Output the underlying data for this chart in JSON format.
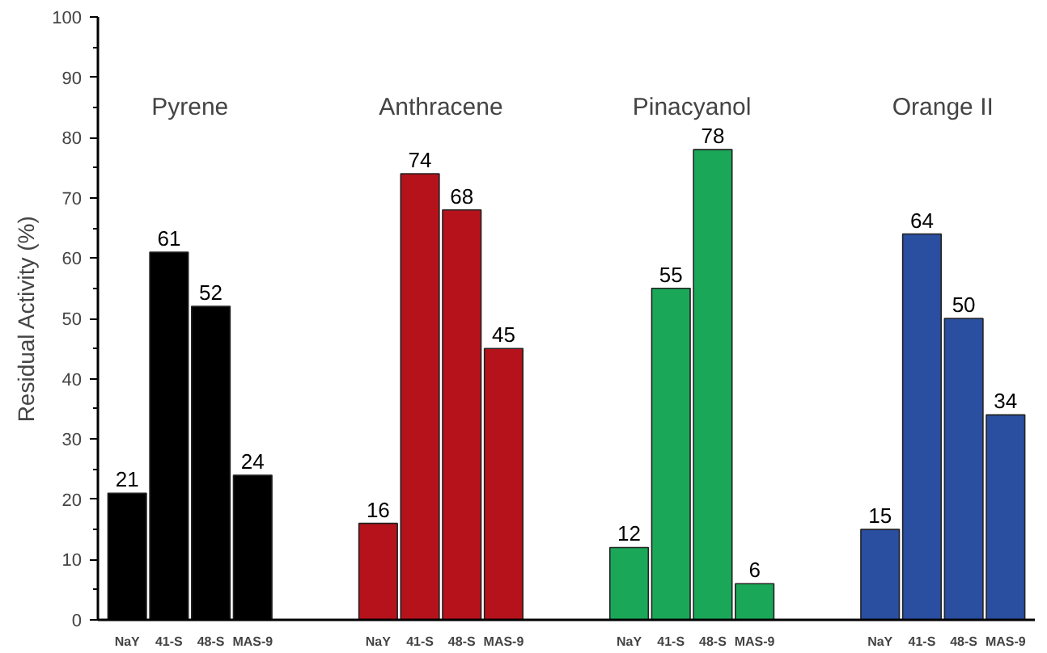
{
  "chart_data": {
    "type": "bar",
    "ylabel": "Residual Activity (%)",
    "categories": [
      "NaY",
      "41-S",
      "48-S",
      "MAS-9",
      null,
      null,
      "NaY",
      "41-S",
      "48-S",
      "MAS-9",
      null,
      null,
      "NaY",
      "41-S",
      "48-S",
      "MAS-9",
      null,
      null,
      "NaY",
      "41-S",
      "48-S",
      "MAS-9"
    ],
    "values": [
      21,
      61,
      52,
      24,
      null,
      null,
      16,
      74,
      68,
      45,
      null,
      null,
      12,
      55,
      78,
      6,
      null,
      null,
      15,
      64,
      50,
      34
    ],
    "colors": [
      "#000000",
      "#000000",
      "#000000",
      "#000000",
      null,
      null,
      "#b5121b",
      "#b5121b",
      "#b5121b",
      "#b5121b",
      null,
      null,
      "#1aa858",
      "#1aa858",
      "#1aa858",
      "#1aa858",
      null,
      null,
      "#2a4ea0",
      "#2a4ea0",
      "#2a4ea0",
      "#2a4ea0"
    ],
    "ylim": [
      0,
      100
    ],
    "yticks": [
      0,
      10,
      20,
      30,
      40,
      50,
      60,
      70,
      80,
      90,
      100
    ],
    "data_labels": true,
    "annotations": [
      "Pyrene",
      "Anthracene",
      "Pinacyanol",
      "Orange II"
    ]
  }
}
